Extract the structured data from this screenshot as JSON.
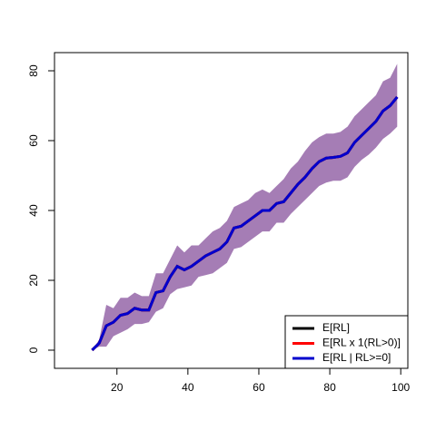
{
  "chart_data": {
    "type": "line",
    "x": [
      13,
      15,
      17,
      19,
      21,
      23,
      25,
      27,
      29,
      31,
      33,
      35,
      37,
      39,
      41,
      43,
      45,
      47,
      49,
      51,
      53,
      55,
      57,
      59,
      61,
      63,
      65,
      67,
      69,
      71,
      73,
      75,
      77,
      79,
      81,
      83,
      85,
      87,
      89,
      91,
      93,
      95,
      97,
      99
    ],
    "band": {
      "color": "#a57db5",
      "upper": [
        0,
        3,
        13,
        12,
        15,
        15,
        16.5,
        15.5,
        15.5,
        22,
        22,
        26,
        30,
        28,
        30,
        30,
        32,
        34,
        35,
        37,
        41,
        42,
        43,
        45,
        46,
        45,
        47,
        49,
        52,
        54,
        57,
        59.5,
        61,
        62,
        62,
        62.5,
        64,
        67,
        69,
        71,
        73,
        77,
        78,
        82
      ],
      "lower": [
        0,
        1,
        1,
        4,
        5,
        6,
        7.5,
        7.5,
        8,
        11,
        12,
        16,
        17.5,
        18,
        18.5,
        21,
        21.5,
        22,
        23.5,
        25,
        29,
        29.5,
        31,
        32.5,
        34,
        34,
        36.5,
        36.5,
        39,
        41,
        43,
        45,
        47,
        48,
        48.5,
        48.5,
        49.5,
        52.5,
        54.5,
        56,
        58,
        60.5,
        62,
        64
      ]
    },
    "series": [
      {
        "name": "E[RL]",
        "color": "#000000",
        "values": [
          0,
          2,
          7,
          8,
          10,
          10.5,
          12,
          11.5,
          11.5,
          16.5,
          17,
          21,
          24,
          23,
          24,
          25.5,
          27,
          28,
          29,
          31,
          35,
          35.5,
          37,
          38.5,
          40,
          40,
          42,
          42.5,
          45,
          47.5,
          49.5,
          52,
          54,
          55,
          55.2,
          55.5,
          56.5,
          59.5,
          61.5,
          63.5,
          65.5,
          68.5,
          70,
          72.5
        ]
      },
      {
        "name": "E[RL x 1(RL>0)]",
        "color": "#ff0000",
        "values": [
          0,
          2,
          7,
          8,
          10,
          10.5,
          12,
          11.5,
          11.5,
          16.5,
          17,
          21,
          24,
          23,
          24,
          25.5,
          27,
          28,
          29,
          31,
          35,
          35.5,
          37,
          38.5,
          40,
          40,
          42,
          42.5,
          45,
          47.5,
          49.5,
          52,
          54,
          55,
          55.2,
          55.5,
          56.5,
          59.5,
          61.5,
          63.5,
          65.5,
          68.5,
          70,
          72.5
        ]
      },
      {
        "name": "E[RL | RL>=0]",
        "color": "#0000cd",
        "values": [
          0,
          2,
          7,
          8,
          10,
          10.5,
          12,
          11.5,
          11.5,
          16.5,
          17,
          21,
          24,
          23,
          24,
          25.5,
          27,
          28,
          29,
          31,
          35,
          35.5,
          37,
          38.5,
          40,
          40,
          42,
          42.5,
          45,
          47.5,
          49.5,
          52,
          54,
          55,
          55.2,
          55.5,
          56.5,
          59.5,
          61.5,
          63.5,
          65.5,
          68.5,
          70,
          72.5
        ]
      }
    ],
    "xlim": [
      2.4,
      102
    ],
    "ylim": [
      -5.2,
      85.2
    ],
    "xticks": [
      20,
      40,
      60,
      80,
      100
    ],
    "yticks": [
      0,
      20,
      40,
      60,
      80
    ],
    "legend": "bottom-right"
  }
}
